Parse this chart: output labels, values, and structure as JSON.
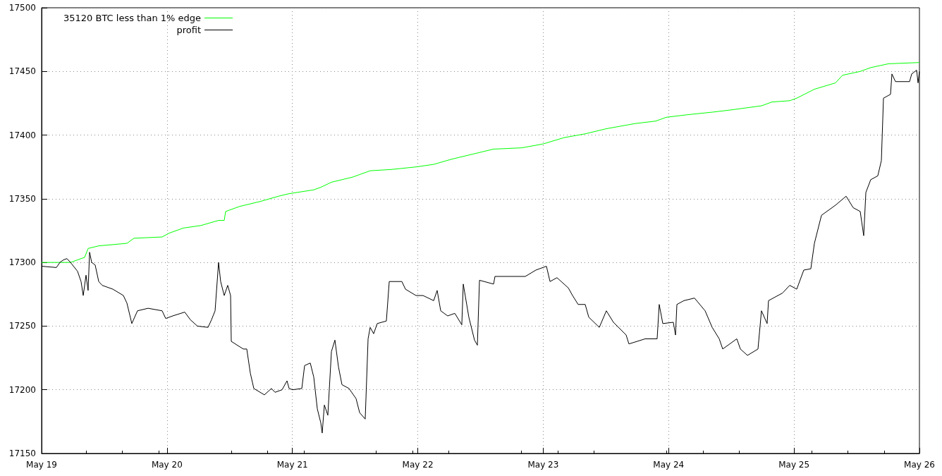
{
  "chart_data": {
    "type": "line",
    "legend": "top left",
    "grid": true,
    "marker": "none",
    "line_style": "solid",
    "ylim": [
      17150,
      17500
    ],
    "yticks": [
      17150,
      17200,
      17250,
      17300,
      17350,
      17400,
      17450,
      17500
    ],
    "xlim": [
      "--05-19T00:00",
      "--05-26T00:00"
    ],
    "xticks": [
      {
        "value": "--05-19",
        "label": "May 19"
      },
      {
        "value": "--05-20",
        "label": "May 20"
      },
      {
        "value": "--05-21",
        "label": "May 21"
      },
      {
        "value": "--05-22",
        "label": "May 22"
      },
      {
        "value": "--05-23",
        "label": "May 23"
      },
      {
        "value": "--05-24",
        "label": "May 24"
      },
      {
        "value": "--05-25",
        "label": "May 25"
      },
      {
        "value": "--05-26",
        "label": "May 26"
      }
    ],
    "series": [
      {
        "name": "35120 BTC less than 1% edge",
        "color": "#00ff00",
        "x": [
          "--05-19T00:00",
          "--05-19T05:32",
          "--05-19T08:14",
          "--05-19T08:55",
          "--05-19T10:56",
          "--05-19T16:20",
          "--05-19T17:41",
          "--05-19T23:04",
          "--05-20T00:25",
          "--05-20T03:07",
          "--05-20T06:30",
          "--05-20T09:52",
          "--05-20T10:57",
          "--05-20T11:13",
          "--05-20T13:55",
          "--05-20T17:58",
          "--05-20T21:20",
          "--05-20T23:22",
          "--05-21T04:05",
          "--05-21T05:26",
          "--05-21T07:28",
          "--05-21T11:31",
          "--05-21T14:53",
          "--05-21T18:56",
          "--05-21T23:39",
          "--05-22T03:02",
          "--05-22T06:24",
          "--05-22T10:27",
          "--05-22T14:30",
          "--05-22T19:53",
          "--05-22T23:56",
          "--05-23T03:59",
          "--05-23T08:02",
          "--05-23T12:05",
          "--05-23T17:29",
          "--05-23T21:32",
          "--05-23T23:34",
          "--05-24T03:37",
          "--05-24T08:20",
          "--05-24T12:23",
          "--05-24T17:46",
          "--05-24T19:48",
          "--05-24T23:10",
          "--05-25T00:31",
          "--05-25T03:53",
          "--05-25T07:56",
          "--05-25T09:17",
          "--05-25T12:40",
          "--05-25T14:41",
          "--05-25T18:04",
          "--05-26T00:00"
        ],
        "values": [
          17300,
          17300,
          17304,
          17311,
          17313,
          17315,
          17319,
          17320,
          17323,
          17327,
          17329,
          17333,
          17333,
          17340,
          17344,
          17348,
          17352,
          17354,
          17357,
          17359,
          17363,
          17367,
          17372,
          17373,
          17375,
          17377,
          17381,
          17385,
          17389,
          17390,
          17393,
          17398,
          17401,
          17405,
          17409,
          17411,
          17414,
          17416,
          17418,
          17420,
          17423,
          17426,
          17427,
          17429,
          17436,
          17441,
          17447,
          17450,
          17453,
          17456,
          17457
        ]
      },
      {
        "name": "profit",
        "color": "#000000",
        "x": [
          "--05-19T00:00",
          "--05-19T02:50",
          "--05-19T03:30",
          "--05-19T04:11",
          "--05-19T04:51",
          "--05-19T05:32",
          "--05-19T06:53",
          "--05-19T07:33",
          "--05-19T07:58",
          "--05-19T08:30",
          "--05-19T08:54",
          "--05-19T09:11",
          "--05-19T09:35",
          "--05-19T10:15",
          "--05-19T10:56",
          "--05-19T11:36",
          "--05-19T13:38",
          "--05-19T15:39",
          "--05-19T16:20",
          "--05-19T17:16",
          "--05-19T18:21",
          "--05-19T20:23",
          "--05-19T23:04",
          "--05-19T23:45",
          "--05-20T01:06",
          "--05-20T03:24",
          "--05-20T04:28",
          "--05-20T05:49",
          "--05-20T07:51",
          "--05-20T08:31",
          "--05-20T09:12",
          "--05-20T09:52",
          "--05-20T10:16",
          "--05-20T10:57",
          "--05-20T11:37",
          "--05-20T12:10",
          "--05-20T12:18",
          "--05-20T14:36",
          "--05-20T15:16",
          "--05-20T15:57",
          "--05-20T16:37",
          "--05-20T18:38",
          "--05-20T19:59",
          "--05-20T20:40",
          "--05-20T22:01",
          "--05-20T22:58",
          "--05-20T23:22",
          "--05-21T00:02",
          "--05-21T01:48",
          "--05-21T02:20",
          "--05-21T03:25",
          "--05-21T04:05",
          "--05-21T04:46",
          "--05-21T05:26",
          "--05-21T05:42",
          "--05-21T06:07",
          "--05-21T06:47",
          "--05-21T07:28",
          "--05-21T08:08",
          "--05-21T08:49",
          "--05-21T09:29",
          "--05-21T10:50",
          "--05-21T12:11",
          "--05-21T12:52",
          "--05-21T13:56",
          "--05-21T14:29",
          "--05-21T14:53",
          "--05-21T15:33",
          "--05-21T16:14",
          "--05-21T17:59",
          "--05-21T18:32",
          "--05-21T20:57",
          "--05-21T21:38",
          "--05-21T23:39",
          "--05-22T01:00",
          "--05-22T03:02",
          "--05-22T03:42",
          "--05-22T04:23",
          "--05-22T05:43",
          "--05-22T07:05",
          "--05-22T08:25",
          "--05-22T08:42",
          "--05-22T09:46",
          "--05-22T10:51",
          "--05-22T11:24",
          "--05-22T11:48",
          "--05-22T14:30",
          "--05-22T14:46",
          "--05-22T20:34",
          "--05-22T22:36",
          "--05-23T00:37",
          "--05-23T01:18",
          "--05-23T02:38",
          "--05-23T04:48",
          "--05-23T05:37",
          "--05-23T06:41",
          "--05-23T08:02",
          "--05-23T08:43",
          "--05-23T10:44",
          "--05-23T12:05",
          "--05-23T13:26",
          "--05-23T15:52",
          "--05-23T16:24",
          "--05-23T19:31",
          "--05-23T21:48",
          "--05-23T22:12",
          "--05-23T22:53",
          "--05-24T00:54",
          "--05-24T01:19",
          "--05-24T01:35",
          "--05-24T02:56",
          "--05-24T04:57",
          "--05-24T06:59",
          "--05-24T08:20",
          "--05-24T09:41",
          "--05-24T10:21",
          "--05-24T13:03",
          "--05-24T13:44",
          "--05-24T15:05",
          "--05-24T17:06",
          "--05-24T17:46",
          "--05-24T18:51",
          "--05-24T19:07",
          "--05-24T21:49",
          "--05-24T23:10",
          "--05-25T00:31",
          "--05-25T01:52",
          "--05-25T03:13",
          "--05-25T03:54",
          "--05-25T05:15",
          "--05-25T07:57",
          "--05-25T09:58",
          "--05-25T11:19",
          "--05-25T12:40",
          "--05-25T13:20",
          "--05-25T13:45",
          "--05-25T14:41",
          "--05-25T16:02",
          "--05-25T16:43",
          "--05-25T17:07",
          "--05-25T18:28",
          "--05-25T18:44",
          "--05-25T19:25",
          "--05-25T22:07",
          "--05-25T22:31",
          "--05-25T23:28",
          "--05-25T23:44",
          "--05-26T00:00"
        ],
        "values": [
          17297,
          17296,
          17300,
          17302,
          17303,
          17300,
          17293,
          17285,
          17274,
          17290,
          17278,
          17308,
          17300,
          17298,
          17285,
          17282,
          17279,
          17274,
          17268,
          17252,
          17262,
          17264,
          17262,
          17256,
          17258,
          17261,
          17255,
          17250,
          17249,
          17255,
          17262,
          17300,
          17285,
          17274,
          17282,
          17274,
          17238,
          17232,
          17232,
          17213,
          17201,
          17196,
          17201,
          17198,
          17200,
          17207,
          17201,
          17200,
          17201,
          17219,
          17221,
          17210,
          17185,
          17174,
          17166,
          17188,
          17180,
          17230,
          17239,
          17218,
          17204,
          17201,
          17193,
          17182,
          17177,
          17240,
          17249,
          17244,
          17252,
          17254,
          17285,
          17285,
          17279,
          17274,
          17274,
          17270,
          17278,
          17262,
          17258,
          17260,
          17251,
          17283,
          17257,
          17239,
          17235,
          17286,
          17283,
          17289,
          17289,
          17294,
          17297,
          17285,
          17288,
          17280,
          17274,
          17267,
          17267,
          17257,
          17249,
          17262,
          17253,
          17243,
          17236,
          17240,
          17240,
          17267,
          17252,
          17253,
          17243,
          17267,
          17270,
          17272,
          17262,
          17249,
          17240,
          17232,
          17240,
          17232,
          17227,
          17232,
          17262,
          17252,
          17270,
          17276,
          17282,
          17279,
          17294,
          17295,
          17315,
          17337,
          17345,
          17352,
          17343,
          17340,
          17321,
          17355,
          17365,
          17368,
          17380,
          17429,
          17432,
          17448,
          17442,
          17442,
          17448,
          17451,
          17441,
          17450
        ]
      }
    ]
  }
}
